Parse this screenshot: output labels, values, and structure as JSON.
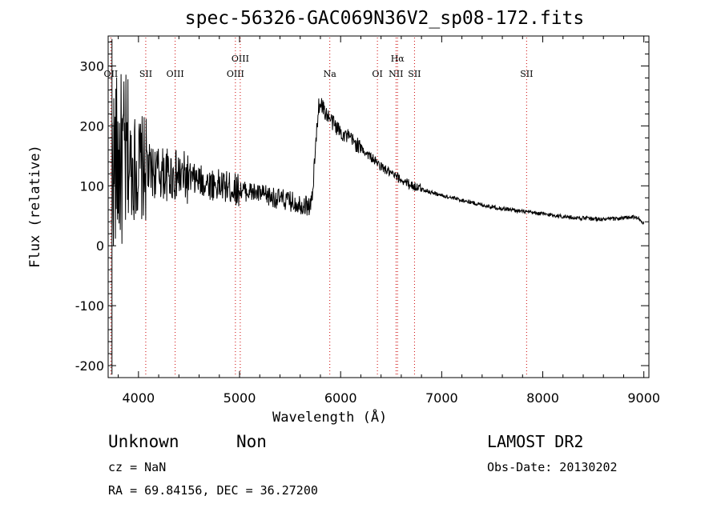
{
  "chart_data": {
    "type": "line",
    "title": "spec-56326-GAC069N36V2_sp08-172.fits",
    "xlabel": "Wavelength (Å)",
    "ylabel": "Flux (relative)",
    "xlim": [
      3700,
      9050
    ],
    "ylim": [
      -220,
      350
    ],
    "xticks": [
      4000,
      5000,
      6000,
      7000,
      8000,
      9000
    ],
    "yticks": [
      -200,
      -100,
      0,
      100,
      200,
      300
    ],
    "grid": false,
    "line_color": "#000000",
    "marker_color": "#cc0000",
    "series": [
      {
        "x": [
          3700,
          3750,
          3800,
          3850,
          3900,
          3950,
          4000,
          4100,
          4200,
          4300,
          4400,
          4500,
          4600,
          4700,
          4800,
          4900,
          5000,
          5100,
          5200,
          5300,
          5400,
          5500,
          5600,
          5700,
          5720,
          5750,
          5780,
          5800,
          5850,
          5900,
          5950,
          6000,
          6100,
          6200,
          6300,
          6400,
          6500,
          6600,
          6700,
          6800,
          6900,
          7000,
          7100,
          7200,
          7300,
          7400,
          7500,
          7600,
          7700,
          7800,
          7900,
          8000,
          8100,
          8200,
          8300,
          8400,
          8500,
          8600,
          8700,
          8800,
          8900,
          8950,
          9000
        ],
        "y": [
          130,
          135,
          140,
          138,
          135,
          132,
          130,
          125,
          122,
          118,
          115,
          112,
          108,
          104,
          100,
          97,
          93,
          90,
          86,
          82,
          78,
          74,
          70,
          66,
          80,
          160,
          230,
          240,
          222,
          210,
          200,
          190,
          178,
          163,
          148,
          132,
          120,
          110,
          101,
          95,
          89,
          84,
          80,
          76,
          72,
          68,
          65,
          62,
          60,
          57,
          55,
          53,
          51,
          49,
          47,
          46,
          45,
          44,
          45,
          46,
          48,
          45,
          37
        ]
      }
    ],
    "line_markers": [
      {
        "label": "OII",
        "x": 3727
      },
      {
        "label": "SII",
        "x": 4072
      },
      {
        "label": "OIII",
        "x": 4363
      },
      {
        "label": "OIII",
        "x": 4959
      },
      {
        "label": "OIII",
        "x": 5007
      },
      {
        "label": "Na",
        "x": 5893
      },
      {
        "label": "OI",
        "x": 6364
      },
      {
        "label": "NII",
        "x": 6548
      },
      {
        "label": "Hα",
        "x": 6563
      },
      {
        "label": "SII",
        "x": 6731
      },
      {
        "label": "SII",
        "x": 7840
      }
    ]
  },
  "info": {
    "object_class": "Unknown",
    "object_subclass": "Non",
    "survey": "LAMOST DR2",
    "redshift": "cz = NaN",
    "obs_date": "Obs-Date: 20130202",
    "coords": "RA =  69.84156, DEC =  36.27200"
  }
}
